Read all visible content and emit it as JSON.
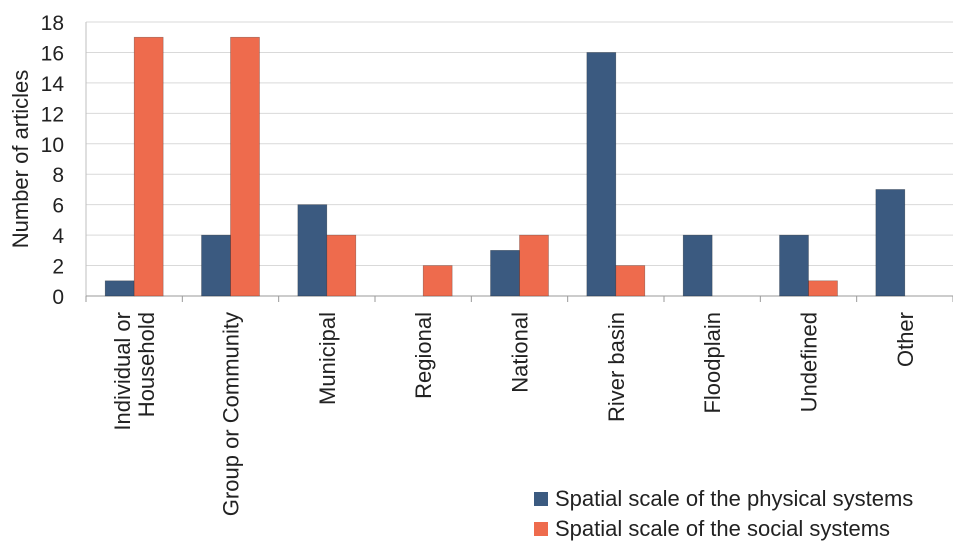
{
  "chart_data": {
    "type": "bar",
    "ylabel": "Number of articles",
    "ylim": [
      0,
      18
    ],
    "yticks": [
      0,
      2,
      4,
      6,
      8,
      10,
      12,
      14,
      16,
      18
    ],
    "grid": true,
    "legend_position": "bottom-right",
    "categories": [
      [
        "Individual or",
        "Household"
      ],
      [
        "Group or Community"
      ],
      [
        "Municipal"
      ],
      [
        "Regional"
      ],
      [
        "National"
      ],
      [
        "River basin"
      ],
      [
        "Floodplain"
      ],
      [
        "Undefined"
      ],
      [
        "Other"
      ]
    ],
    "series": [
      {
        "name": "Spatial scale of the physical systems",
        "color": "#3b5a80",
        "values": [
          1,
          4,
          6,
          0,
          3,
          16,
          4,
          4,
          7
        ]
      },
      {
        "name": "Spatial scale of the social systems",
        "color": "#ee6b4d",
        "values": [
          17,
          17,
          4,
          2,
          4,
          2,
          0,
          1,
          0
        ]
      }
    ]
  }
}
